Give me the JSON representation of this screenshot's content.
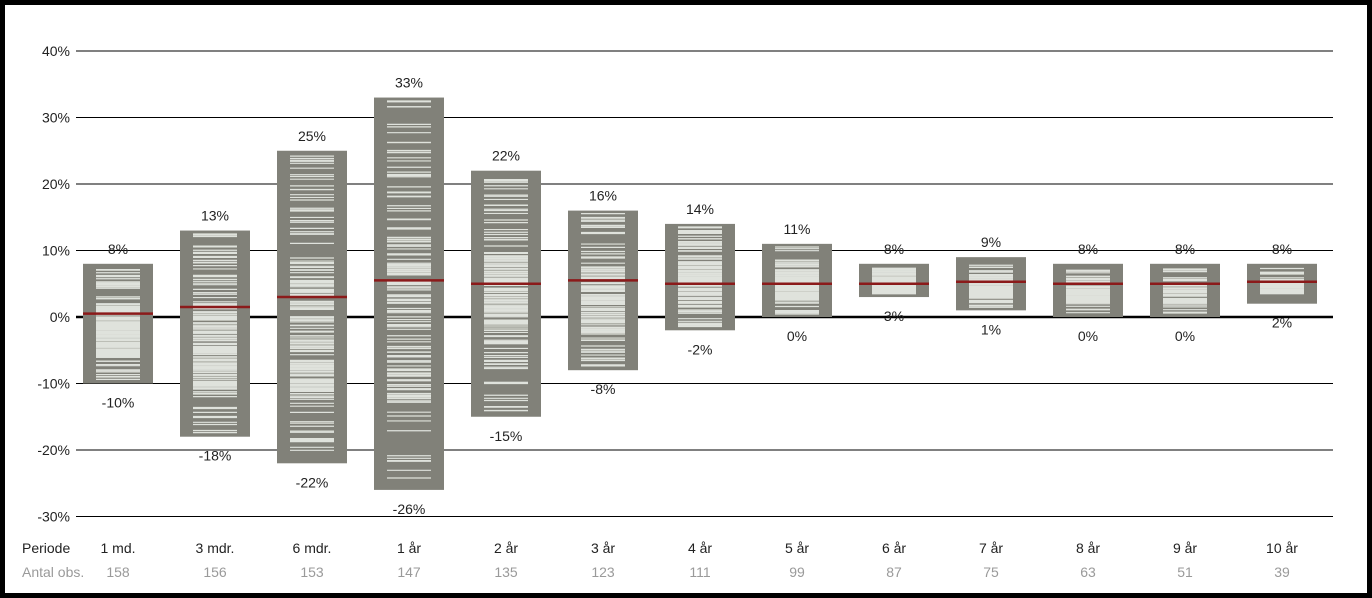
{
  "chart_data": {
    "type": "range-bar",
    "ylim": [
      -30,
      40
    ],
    "yticks": [
      "40%",
      "30%",
      "20%",
      "10%",
      "0%",
      "-10%",
      "-20%",
      "-30%"
    ],
    "ytick_values": [
      40,
      30,
      20,
      10,
      0,
      -10,
      -20,
      -30
    ],
    "row_labels": {
      "period": "Periode",
      "count": "Antal obs."
    },
    "categories": [
      "1 md.",
      "3 mdr.",
      "6 mdr.",
      "1 år",
      "2 år",
      "3 år",
      "4 år",
      "5 år",
      "6 år",
      "7 år",
      "8 år",
      "9 år",
      "10 år"
    ],
    "max_labels": [
      "8%",
      "13%",
      "25%",
      "33%",
      "22%",
      "16%",
      "14%",
      "11%",
      "8%",
      "9%",
      "8%",
      "8%",
      "8%"
    ],
    "min_labels": [
      "-10%",
      "-18%",
      "-22%",
      "-26%",
      "-15%",
      "-8%",
      "-2%",
      "0%",
      "3%",
      "1%",
      "0%",
      "0%",
      "2%"
    ],
    "max": [
      8,
      13,
      25,
      33,
      22,
      16,
      14,
      11,
      8,
      9,
      8,
      8,
      8
    ],
    "min": [
      -10,
      -18,
      -22,
      -26,
      -15,
      -8,
      -2,
      0,
      3,
      1,
      0,
      0,
      2
    ],
    "median": [
      0.5,
      1.5,
      3,
      5.5,
      5,
      5.5,
      5,
      5,
      5,
      5.3,
      5,
      5,
      5.3
    ],
    "observations": [
      "158",
      "156",
      "153",
      "147",
      "135",
      "123",
      "111",
      "99",
      "87",
      "75",
      "63",
      "51",
      "39"
    ],
    "colors": {
      "range_bar": "#818179",
      "observation_line": "#dfe2dc",
      "median_line": "#8b1a1a",
      "zero_line": "#000000",
      "grid": "#000000"
    }
  }
}
